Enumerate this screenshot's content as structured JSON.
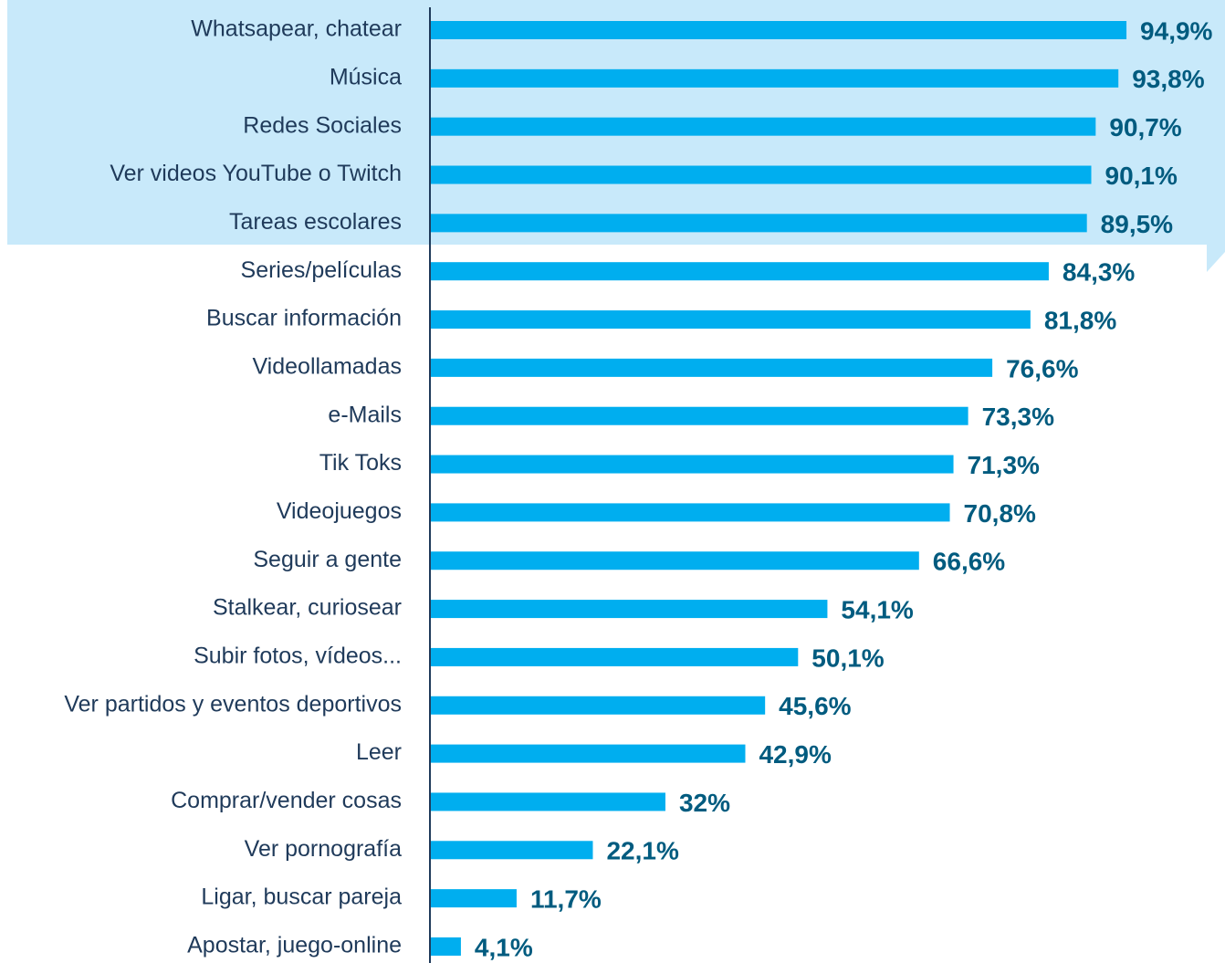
{
  "chart_data": {
    "type": "bar",
    "orientation": "horizontal",
    "categories": [
      "Whatsapear, chatear",
      "Música",
      "Redes Sociales",
      "Ver videos YouTube o Twitch",
      "Tareas escolares",
      "Series/películas",
      "Buscar información",
      "Videollamadas",
      "e-Mails",
      "Tik Toks",
      "Videojuegos",
      "Seguir a gente",
      "Stalkear, curiosear",
      "Subir fotos, vídeos...",
      "Ver partidos y eventos deportivos",
      "Leer",
      "Comprar/vender cosas",
      "Ver pornografía",
      "Ligar, buscar pareja",
      "Apostar, juego-online"
    ],
    "values": [
      94.9,
      93.8,
      90.7,
      90.1,
      89.5,
      84.3,
      81.8,
      76.6,
      73.3,
      71.3,
      70.8,
      66.6,
      54.1,
      50.1,
      45.6,
      42.9,
      32,
      22.1,
      11.7,
      4.1
    ],
    "value_labels": [
      "94,9%",
      "93,8%",
      "90,7%",
      "90,1%",
      "89,5%",
      "84,3%",
      "81,8%",
      "76,6%",
      "73,3%",
      "71,3%",
      "70,8%",
      "66,6%",
      "54,1%",
      "50,1%",
      "45,6%",
      "42,9%",
      "32%",
      "22,1%",
      "11,7%",
      "4,1%"
    ],
    "color": "#00aeef",
    "xlim": [
      0,
      100
    ]
  }
}
